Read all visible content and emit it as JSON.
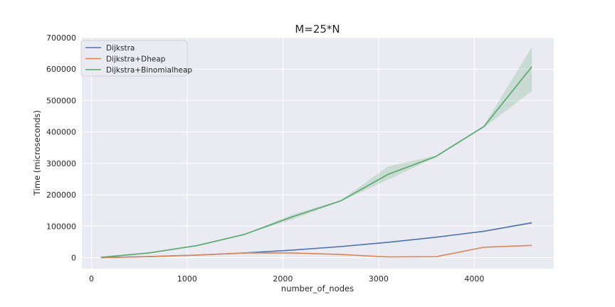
{
  "chart_data": {
    "type": "line",
    "title": "M=25*N",
    "xlabel": "number_of_nodes",
    "ylabel": "Time (microseconds)",
    "xlim": [
      -100,
      4830
    ],
    "ylim": [
      -35000,
      700000
    ],
    "xticks": [
      0,
      1000,
      2000,
      3000,
      4000
    ],
    "xtick_labels": [
      "0",
      "1000",
      "2000",
      "3000",
      "4000"
    ],
    "yticks": [
      0,
      100000,
      200000,
      300000,
      400000,
      500000,
      600000,
      700000
    ],
    "ytick_labels": [
      "0",
      "100000",
      "200000",
      "300000",
      "400000",
      "500000",
      "600000",
      "700000"
    ],
    "grid": true,
    "legend_position": "top-left",
    "x": [
      100,
      600,
      1100,
      1600,
      2100,
      2600,
      3100,
      3600,
      4100,
      4600
    ],
    "series": [
      {
        "name": "Dijkstra",
        "color": "#4c72b0",
        "values": [
          500,
          3500,
          8000,
          15000,
          24000,
          35000,
          49000,
          65000,
          84000,
          111000
        ],
        "ci_low": [
          500,
          3500,
          8000,
          15000,
          24000,
          35000,
          49000,
          65000,
          83000,
          108000
        ],
        "ci_high": [
          500,
          3500,
          8000,
          15000,
          24000,
          35000,
          49000,
          65000,
          85000,
          113000
        ]
      },
      {
        "name": "Dijkstra+Dheap",
        "color": "#dd8452",
        "values": [
          0,
          3000,
          8000,
          15000,
          15000,
          10000,
          2000,
          3000,
          33000,
          39000
        ],
        "ci_low": [
          0,
          3000,
          8000,
          15000,
          15000,
          10000,
          2000,
          3000,
          32000,
          38000
        ],
        "ci_high": [
          0,
          3000,
          8000,
          15000,
          15000,
          10000,
          2000,
          3000,
          34000,
          40000
        ]
      },
      {
        "name": "Dijkstra+Binomialheap",
        "color": "#55a868",
        "values": [
          1000,
          15000,
          38000,
          74000,
          130000,
          180000,
          265000,
          322000,
          417000,
          607000
        ],
        "ci_low": [
          1000,
          15000,
          38000,
          74000,
          122000,
          178000,
          248000,
          320000,
          414000,
          530000
        ],
        "ci_high": [
          1000,
          15000,
          38000,
          74000,
          137000,
          182000,
          290000,
          325000,
          420000,
          670000
        ]
      }
    ]
  }
}
